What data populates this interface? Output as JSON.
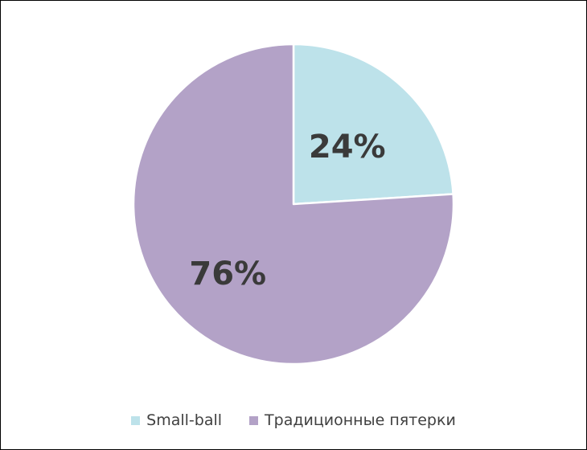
{
  "chart_data": {
    "type": "pie",
    "title": "",
    "legend_position": "bottom",
    "slices": [
      {
        "name": "Small-ball",
        "value": 24,
        "label": "24%",
        "color": "#bde2ea"
      },
      {
        "name": "Традиционные пятерки",
        "value": 76,
        "label": "76%",
        "color": "#b3a2c7"
      }
    ],
    "start_angle_deg": 0,
    "direction": "clockwise"
  }
}
